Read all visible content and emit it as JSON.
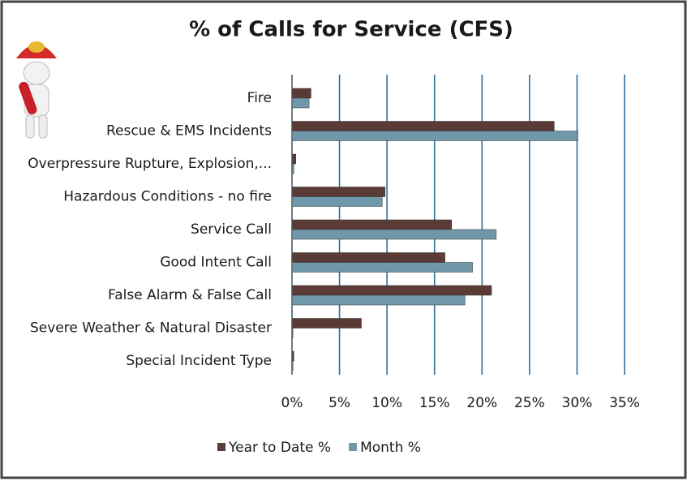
{
  "chart_data": {
    "type": "bar",
    "orientation": "horizontal",
    "title": "% of Calls for Service (CFS)",
    "categories": [
      "Fire",
      "Rescue & EMS Incidents",
      "Overpressure Rupture, Explosion,...",
      "Hazardous Conditions - no fire",
      "Service Call",
      "Good Intent Call",
      "False Alarm & False Call",
      "Severe Weather & Natural Disaster",
      "Special Incident Type"
    ],
    "series": [
      {
        "name": "Year to Date %",
        "color": "#5b3b36",
        "values": [
          2.0,
          27.6,
          0.4,
          9.8,
          16.8,
          16.1,
          21.0,
          7.3,
          0.2
        ]
      },
      {
        "name": "Month %",
        "color": "#6f98aa",
        "values": [
          1.8,
          30.1,
          0.2,
          9.5,
          21.5,
          19.0,
          18.2,
          0.1,
          0.1
        ]
      }
    ],
    "xlim": [
      0,
      35
    ],
    "xticks": [
      {
        "value": 0,
        "label": "0%"
      },
      {
        "value": 5,
        "label": "5%"
      },
      {
        "value": 10,
        "label": "10%"
      },
      {
        "value": 15,
        "label": "15%"
      },
      {
        "value": 20,
        "label": "20%"
      },
      {
        "value": 25,
        "label": "25%"
      },
      {
        "value": 30,
        "label": "30%"
      },
      {
        "value": 35,
        "label": "35%"
      }
    ],
    "grid": true,
    "grid_color": "#2f6e9a",
    "legend": "bottom"
  }
}
